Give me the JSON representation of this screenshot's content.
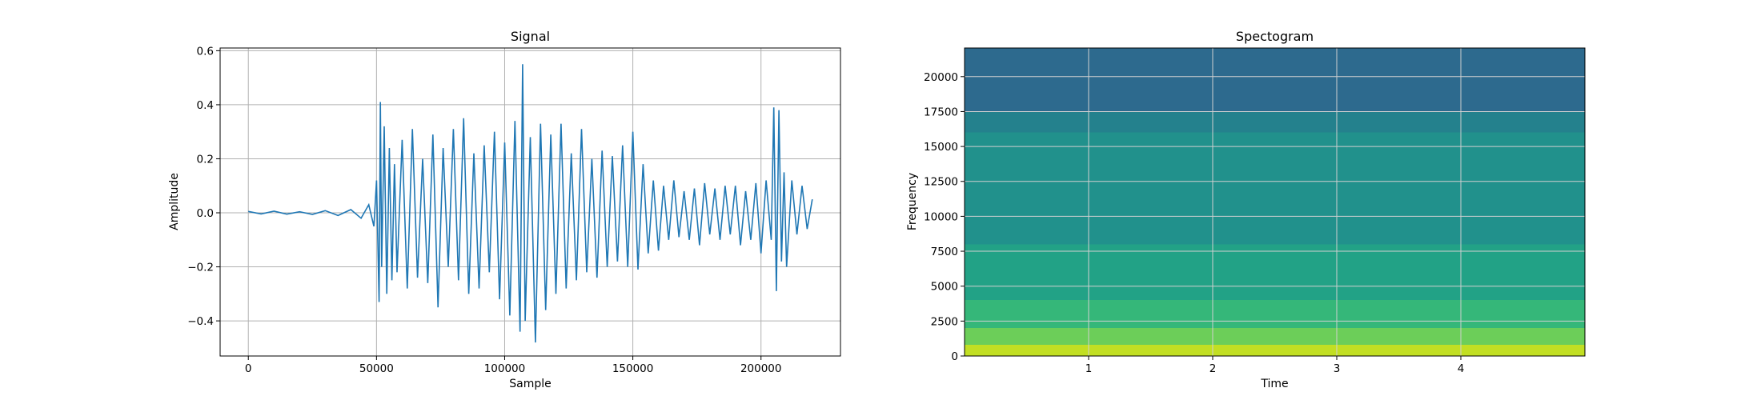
{
  "chart_data": [
    {
      "type": "line",
      "title": "Signal",
      "xlabel": "Sample",
      "ylabel": "Amplitude",
      "xlim": [
        -11000,
        231000
      ],
      "ylim": [
        -0.53,
        0.61
      ],
      "xticks": [
        0,
        50000,
        100000,
        150000,
        200000
      ],
      "xtick_labels": [
        "0",
        "50000",
        "100000",
        "150000",
        "200000"
      ],
      "yticks": [
        -0.4,
        -0.2,
        0.0,
        0.2,
        0.4,
        0.6
      ],
      "ytick_labels": [
        "−0.4",
        "−0.2",
        "0.0",
        "0.2",
        "0.4",
        "0.6"
      ],
      "grid": true,
      "color": "#1f77b4",
      "series": [
        {
          "x": [
            0,
            5000,
            10000,
            15000,
            20000,
            25000,
            30000,
            35000,
            40000,
            44000,
            47000,
            49000,
            50000,
            51000,
            51500,
            52000,
            53000,
            54000,
            55000,
            56000,
            57000,
            58000,
            60000,
            62000,
            64000,
            66000,
            68000,
            70000,
            72000,
            74000,
            76000,
            78000,
            80000,
            82000,
            84000,
            86000,
            88000,
            90000,
            92000,
            94000,
            96000,
            98000,
            100000,
            102000,
            104000,
            106000,
            107000,
            108000,
            110000,
            112000,
            114000,
            116000,
            118000,
            120000,
            122000,
            124000,
            126000,
            128000,
            130000,
            132000,
            134000,
            136000,
            138000,
            140000,
            142000,
            144000,
            146000,
            148000,
            150000,
            152000,
            154000,
            156000,
            158000,
            160000,
            162000,
            164000,
            166000,
            168000,
            170000,
            172000,
            174000,
            176000,
            178000,
            180000,
            182000,
            184000,
            186000,
            188000,
            190000,
            192000,
            194000,
            196000,
            198000,
            200000,
            202000,
            204000,
            205000,
            206000,
            207000,
            208000,
            209000,
            210000,
            212000,
            214000,
            216000,
            218000,
            220000
          ],
          "y": [
            0.005,
            -0.004,
            0.006,
            -0.005,
            0.004,
            -0.006,
            0.008,
            -0.01,
            0.012,
            -0.02,
            0.03,
            -0.05,
            0.12,
            -0.33,
            0.41,
            -0.2,
            0.32,
            -0.3,
            0.24,
            -0.25,
            0.18,
            -0.22,
            0.27,
            -0.28,
            0.31,
            -0.24,
            0.2,
            -0.26,
            0.29,
            -0.35,
            0.24,
            -0.2,
            0.31,
            -0.25,
            0.35,
            -0.3,
            0.22,
            -0.28,
            0.25,
            -0.22,
            0.3,
            -0.32,
            0.26,
            -0.38,
            0.34,
            -0.44,
            0.55,
            -0.4,
            0.28,
            -0.48,
            0.33,
            -0.36,
            0.29,
            -0.3,
            0.33,
            -0.28,
            0.22,
            -0.25,
            0.31,
            -0.22,
            0.2,
            -0.24,
            0.23,
            -0.2,
            0.21,
            -0.18,
            0.25,
            -0.2,
            0.3,
            -0.21,
            0.18,
            -0.15,
            0.12,
            -0.14,
            0.1,
            -0.1,
            0.12,
            -0.09,
            0.08,
            -0.1,
            0.09,
            -0.12,
            0.11,
            -0.08,
            0.09,
            -0.1,
            0.1,
            -0.08,
            0.1,
            -0.12,
            0.08,
            -0.1,
            0.11,
            -0.15,
            0.12,
            -0.1,
            0.39,
            -0.29,
            0.38,
            -0.18,
            0.15,
            -0.2,
            0.12,
            -0.08,
            0.1,
            -0.06,
            0.05
          ]
        }
      ]
    },
    {
      "type": "heatmap",
      "title": "Spectogram",
      "xlabel": "Time",
      "ylabel": "Frequency",
      "xlim": [
        0.0,
        5.0
      ],
      "ylim": [
        0,
        22050
      ],
      "xticks": [
        1,
        2,
        3,
        4
      ],
      "xtick_labels": [
        "1",
        "2",
        "3",
        "4"
      ],
      "yticks": [
        0,
        2500,
        5000,
        7500,
        10000,
        12500,
        15000,
        17500,
        20000
      ],
      "ytick_labels": [
        "0",
        "2500",
        "5000",
        "7500",
        "10000",
        "12500",
        "15000",
        "17500",
        "20000"
      ],
      "grid": true,
      "colormap": "viridis",
      "bands": [
        {
          "f_low": 17500,
          "f_high": 22050,
          "color": "#2d6a8e"
        },
        {
          "f_low": 16000,
          "f_high": 17500,
          "color": "#24818d"
        },
        {
          "f_low": 8000,
          "f_high": 16000,
          "color": "#21918c"
        },
        {
          "f_low": 4000,
          "f_high": 8000,
          "color": "#22a286"
        },
        {
          "f_low": 2000,
          "f_high": 4000,
          "color": "#35b779"
        },
        {
          "f_low": 800,
          "f_high": 2000,
          "color": "#6cce59"
        },
        {
          "f_low": 0,
          "f_high": 800,
          "color": "#c2df23"
        }
      ]
    }
  ]
}
